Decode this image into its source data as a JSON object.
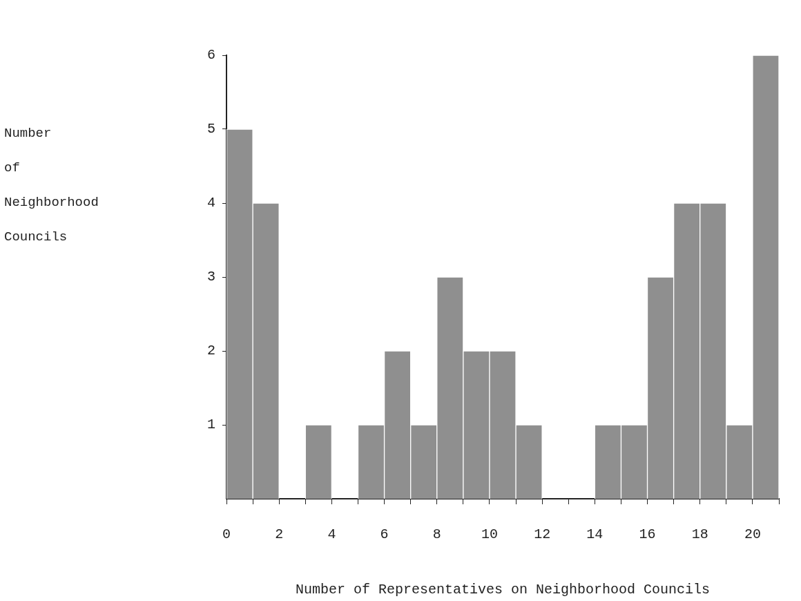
{
  "chart_data": {
    "type": "histogram",
    "xlabel": "Number of Representatives on Neighborhood Councils",
    "ylabel": "Number\nof\nNeighborhood\nCouncils",
    "bins": [
      0,
      1,
      2,
      3,
      4,
      5,
      6,
      7,
      8,
      9,
      10,
      11,
      12,
      13,
      14,
      15,
      16,
      17,
      18,
      19,
      20,
      21
    ],
    "values": [
      5,
      4,
      0,
      1,
      0,
      1,
      2,
      1,
      3,
      2,
      2,
      1,
      0,
      0,
      1,
      1,
      3,
      4,
      4,
      1,
      6
    ],
    "color": "#8f8f8f",
    "xlim": [
      0,
      21
    ],
    "xticks": [
      0,
      {
        "value": 1,
        "label": null
      },
      2,
      {
        "value": 3,
        "label": null
      },
      4,
      {
        "value": 5,
        "label": null
      },
      6,
      {
        "value": 7,
        "label": null
      },
      8,
      {
        "value": 9,
        "label": null
      },
      10,
      {
        "value": 11,
        "label": null
      },
      12,
      {
        "value": 13,
        "label": null
      },
      14,
      {
        "value": 15,
        "label": null
      },
      16,
      {
        "value": 17,
        "label": null
      },
      18,
      {
        "value": 19,
        "label": null
      },
      20,
      {
        "value": 21,
        "label": null
      }
    ],
    "ylim": [
      0,
      6
    ],
    "yticks": [
      1,
      2,
      3,
      4,
      5,
      6
    ]
  }
}
